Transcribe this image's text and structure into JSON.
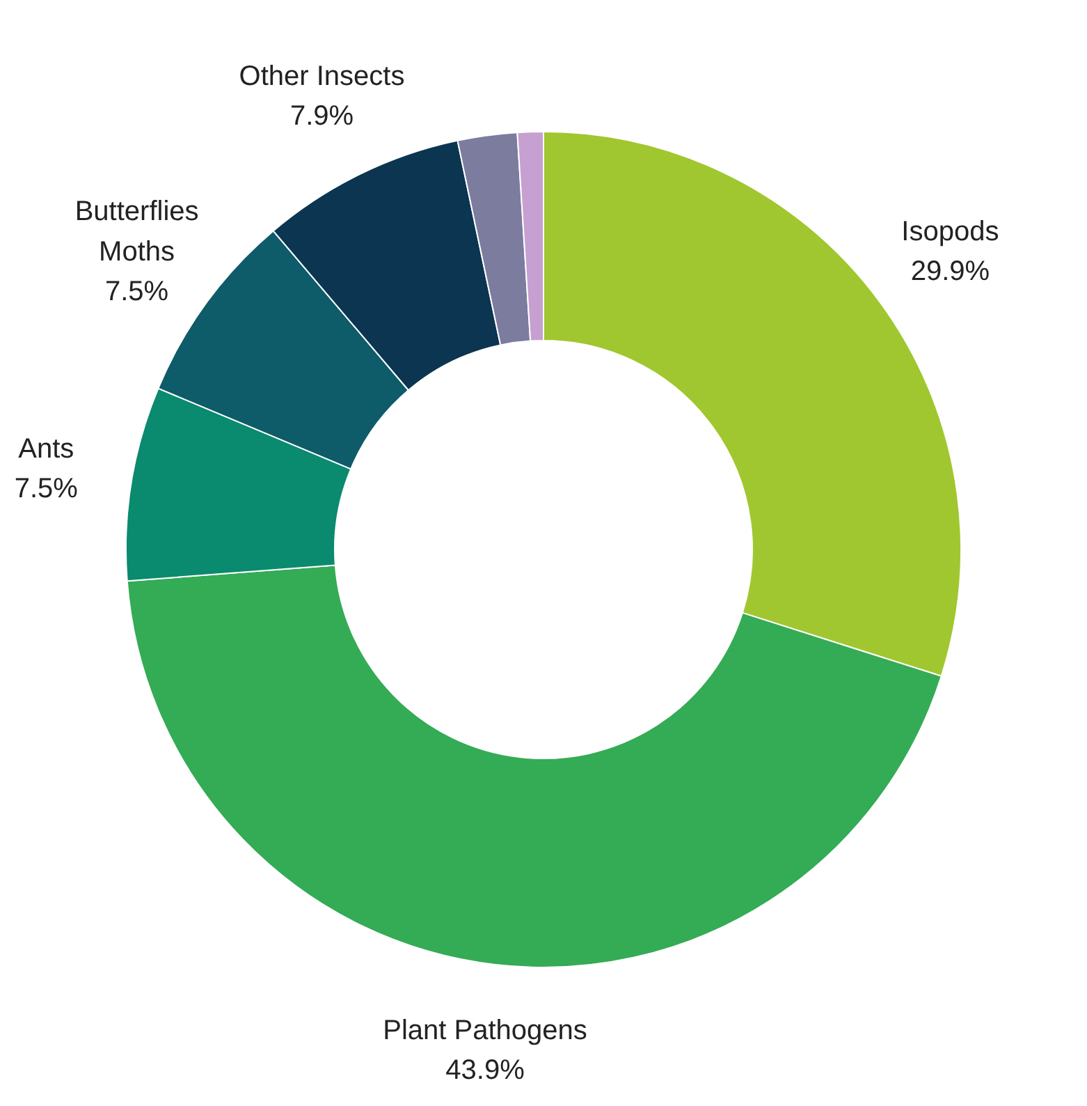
{
  "chart_data": {
    "type": "donut",
    "categories": [
      "Isopods",
      "Plant Pathogens",
      "Ants",
      "Butterflies\nMoths",
      "Other Insects",
      null,
      null
    ],
    "values": [
      29.9,
      43.9,
      7.5,
      7.5,
      7.9,
      2.3,
      1.0
    ],
    "colors": [
      "#a0c72f",
      "#34ab55",
      "#0a8a6e",
      "#0e5b6a",
      "#0b3550",
      "#7b7c9e",
      "#c6a0d0"
    ],
    "value_labels": [
      "29.9%",
      "43.9%",
      "7.5%",
      "7.5%",
      "7.9%",
      null,
      null
    ]
  }
}
